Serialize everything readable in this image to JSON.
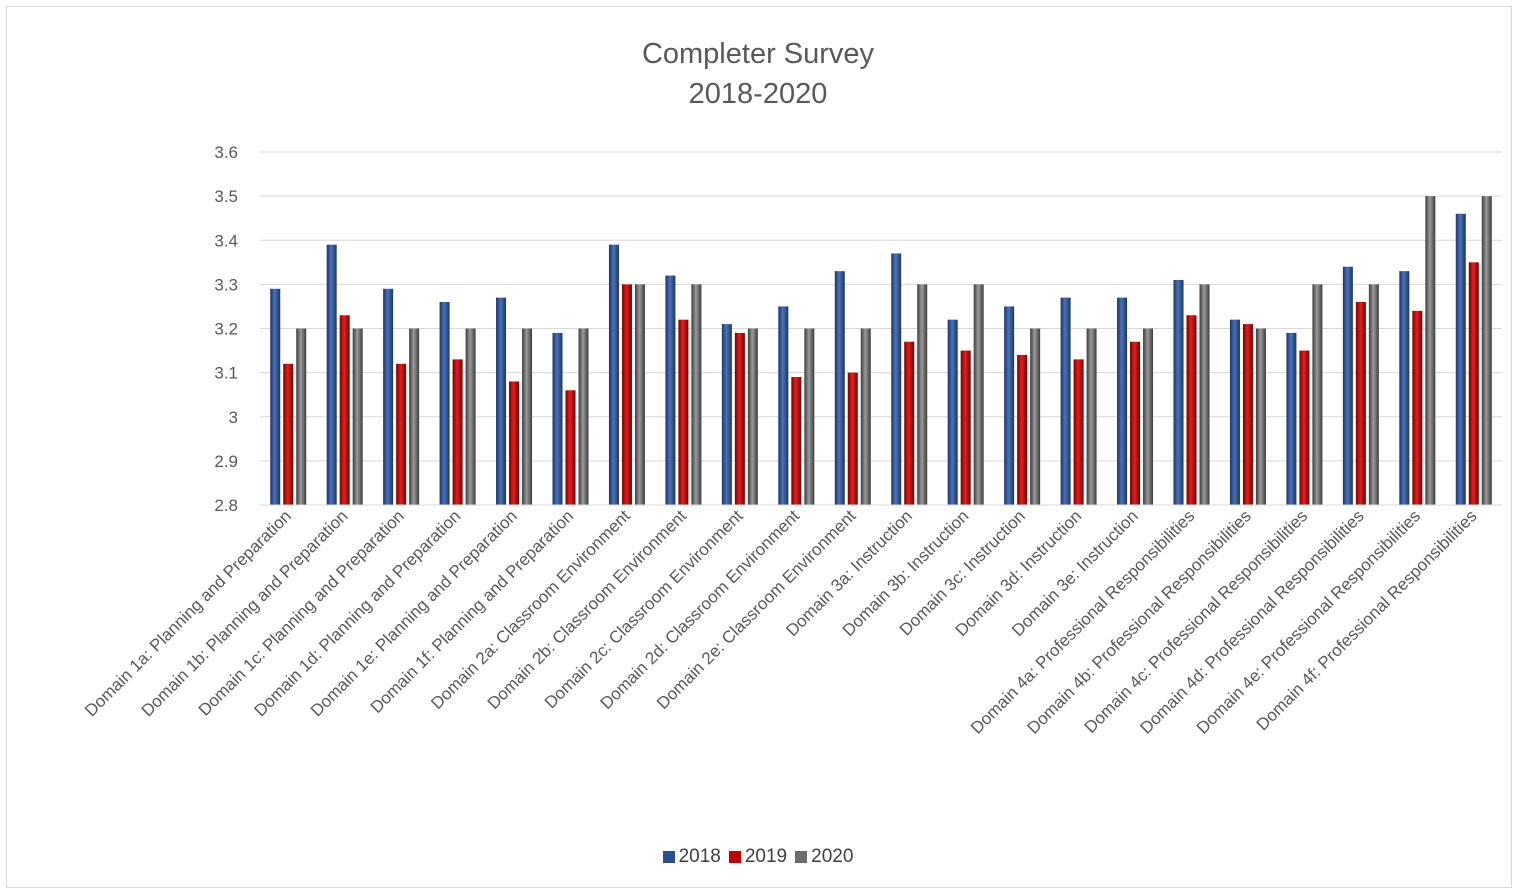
{
  "chart_data": {
    "type": "bar",
    "title": "Completer Survey",
    "subtitle": "2018-2020",
    "xlabel": "",
    "ylabel": "",
    "ylim": [
      2.8,
      3.6
    ],
    "yticks": [
      "2.8",
      "2.9",
      "3",
      "3.1",
      "3.2",
      "3.3",
      "3.4",
      "3.5",
      "3.6"
    ],
    "grid": true,
    "legend_position": "bottom",
    "categories": [
      "Domain 1a: Planning and Preparation",
      "Domain 1b: Planning and Preparation",
      "Domain 1c: Planning and Preparation",
      "Domain 1d: Planning and Preparation",
      "Domain 1e: Planning and Preparation",
      "Domain 1f: Planning and Preparation",
      "Domain 2a: Classroom Environment",
      "Domain 2b: Classroom Environment",
      "Domain 2c: Classroom Environment",
      "Domain 2d: Classroom Environment",
      "Domain 2e: Classroom Environment",
      "Domain 3a: Instruction",
      "Domain 3b: Instruction",
      "Domain 3c: Instruction",
      "Domain 3d: Instruction",
      "Domain 3e: Instruction",
      "Domain 4a: Professional Responsibilities",
      "Domain 4b: Professional Responsibilities",
      "Domain 4c: Professional Responsibilities",
      "Domain 4d: Professional Responsibilities",
      "Domain 4e: Professional Responsibilities",
      "Domain 4f: Professional Responsibilities"
    ],
    "series": [
      {
        "name": "2018",
        "color": "#2e4f8f",
        "values": [
          3.29,
          3.39,
          3.29,
          3.26,
          3.27,
          3.19,
          3.39,
          3.32,
          3.21,
          3.25,
          3.33,
          3.37,
          3.22,
          3.25,
          3.27,
          3.27,
          3.31,
          3.22,
          3.19,
          3.34,
          3.33,
          3.46
        ]
      },
      {
        "name": "2019",
        "color": "#c00000",
        "values": [
          3.12,
          3.23,
          3.12,
          3.13,
          3.08,
          3.06,
          3.3,
          3.22,
          3.19,
          3.09,
          3.1,
          3.17,
          3.15,
          3.14,
          3.13,
          3.17,
          3.23,
          3.21,
          3.15,
          3.26,
          3.24,
          3.35
        ]
      },
      {
        "name": "2020",
        "color": "#6b6b6b",
        "values": [
          3.2,
          3.2,
          3.2,
          3.2,
          3.2,
          3.2,
          3.3,
          3.3,
          3.2,
          3.2,
          3.2,
          3.3,
          3.3,
          3.2,
          3.2,
          3.2,
          3.3,
          3.2,
          3.3,
          3.3,
          3.5,
          3.5
        ]
      }
    ]
  }
}
